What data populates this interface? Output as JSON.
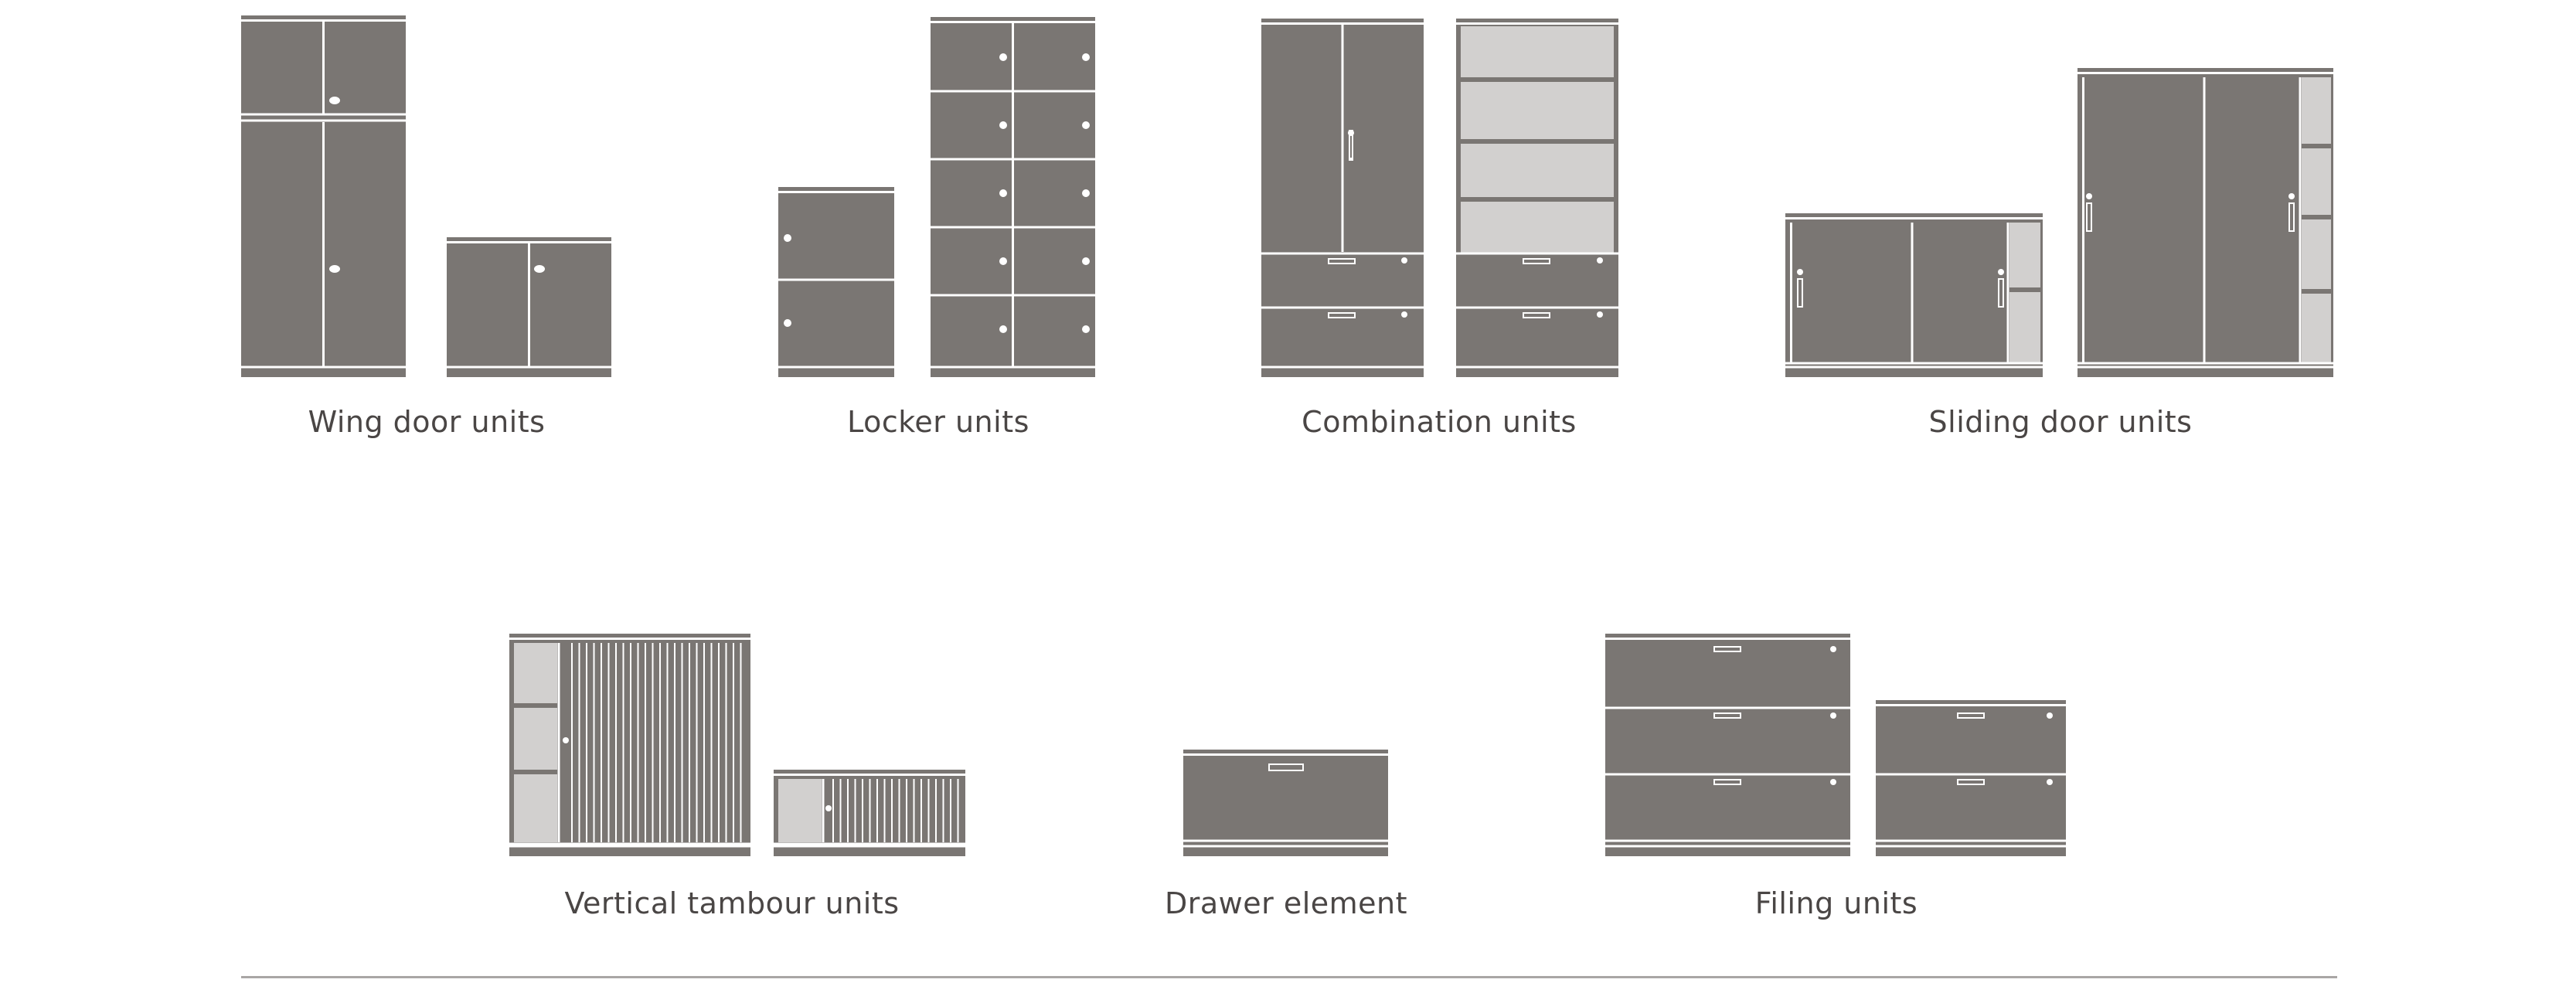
{
  "palette": {
    "body": "#7a7673",
    "light": "#d2d0cf",
    "line": "#ffffff",
    "text": "#4a4645",
    "rule": "#a9a6a5"
  },
  "categories": [
    {
      "id": "wing",
      "label": "Wing door units",
      "icon": "wing-door-unit-icon"
    },
    {
      "id": "locker",
      "label": "Locker units",
      "icon": "locker-unit-icon"
    },
    {
      "id": "combination",
      "label": "Combination units",
      "icon": "combination-unit-icon"
    },
    {
      "id": "sliding",
      "label": "Sliding door units",
      "icon": "sliding-door-unit-icon"
    },
    {
      "id": "tambour",
      "label": "Vertical tambour units",
      "icon": "tambour-unit-icon"
    },
    {
      "id": "drawer",
      "label": "Drawer element",
      "icon": "drawer-element-icon"
    },
    {
      "id": "filing",
      "label": "Filing units",
      "icon": "filing-unit-icon"
    }
  ]
}
